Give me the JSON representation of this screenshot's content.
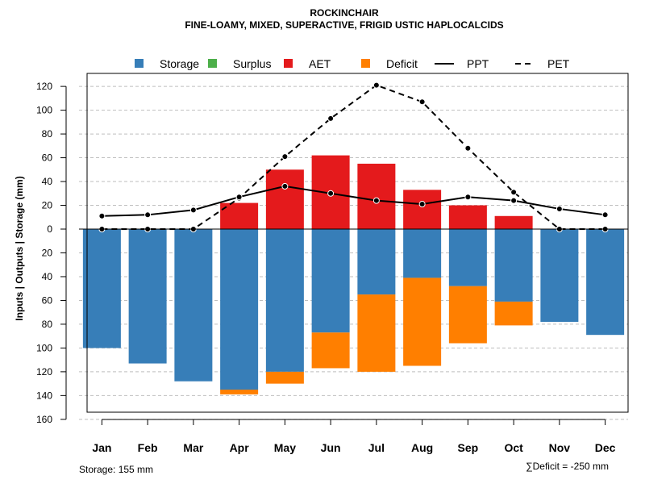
{
  "chart_data": {
    "type": "bar",
    "title": "ROCKINCHAIR",
    "subtitle": "FINE-LOAMY, MIXED, SUPERACTIVE, FRIGID USTIC HAPLOCALCIDS",
    "categories": [
      "Jan",
      "Feb",
      "Mar",
      "Apr",
      "May",
      "Jun",
      "Jul",
      "Aug",
      "Sep",
      "Oct",
      "Nov",
      "Dec"
    ],
    "ylabel": "Inputs | Outputs | Storage    (mm)",
    "ylim": [
      -160,
      130
    ],
    "yticks": [
      120,
      100,
      80,
      60,
      40,
      20,
      0,
      -20,
      -40,
      -60,
      -80,
      -100,
      -120,
      -140,
      -160
    ],
    "ytick_labels": [
      "120",
      "100",
      "80",
      "60",
      "40",
      "20",
      "0",
      "20",
      "40",
      "60",
      "80",
      "100",
      "120",
      "140",
      "160"
    ],
    "legend": [
      {
        "name": "Storage",
        "kind": "square",
        "color": "#377EB8"
      },
      {
        "name": "Surplus",
        "kind": "square",
        "color": "#4DAF4A"
      },
      {
        "name": "AET",
        "kind": "square",
        "color": "#E41A1C"
      },
      {
        "name": "Deficit",
        "kind": "square",
        "color": "#FF7F00"
      },
      {
        "name": "PPT",
        "kind": "solid-line",
        "color": "#000000"
      },
      {
        "name": "PET",
        "kind": "dashed-line",
        "color": "#000000"
      }
    ],
    "series": [
      {
        "name": "AET",
        "color": "#E41A1C",
        "values": [
          0,
          0,
          0,
          22,
          50,
          62,
          55,
          33,
          20,
          11,
          0,
          0
        ]
      },
      {
        "name": "Storage",
        "color": "#377EB8",
        "values": [
          100,
          113,
          128,
          135,
          120,
          87,
          55,
          41,
          48,
          61,
          78,
          89
        ]
      },
      {
        "name": "Deficit",
        "color": "#FF7F00",
        "values": [
          0,
          0,
          0,
          4,
          10,
          30,
          65,
          74,
          48,
          20,
          0,
          0
        ]
      },
      {
        "name": "PPT",
        "color": "#000000",
        "values": [
          11,
          12,
          16,
          27,
          36,
          30,
          24,
          21,
          27,
          24,
          17,
          12
        ]
      },
      {
        "name": "PET",
        "color": "#000000",
        "values": [
          0,
          0,
          0,
          26,
          61,
          93,
          121,
          107,
          68,
          31,
          0,
          0
        ]
      }
    ],
    "annotations": {
      "storage": "Storage: 155 mm",
      "deficit": "∑Deficit = -250 mm"
    },
    "colors": {
      "grid": "#BEBEBE",
      "axis": "#000000"
    }
  }
}
